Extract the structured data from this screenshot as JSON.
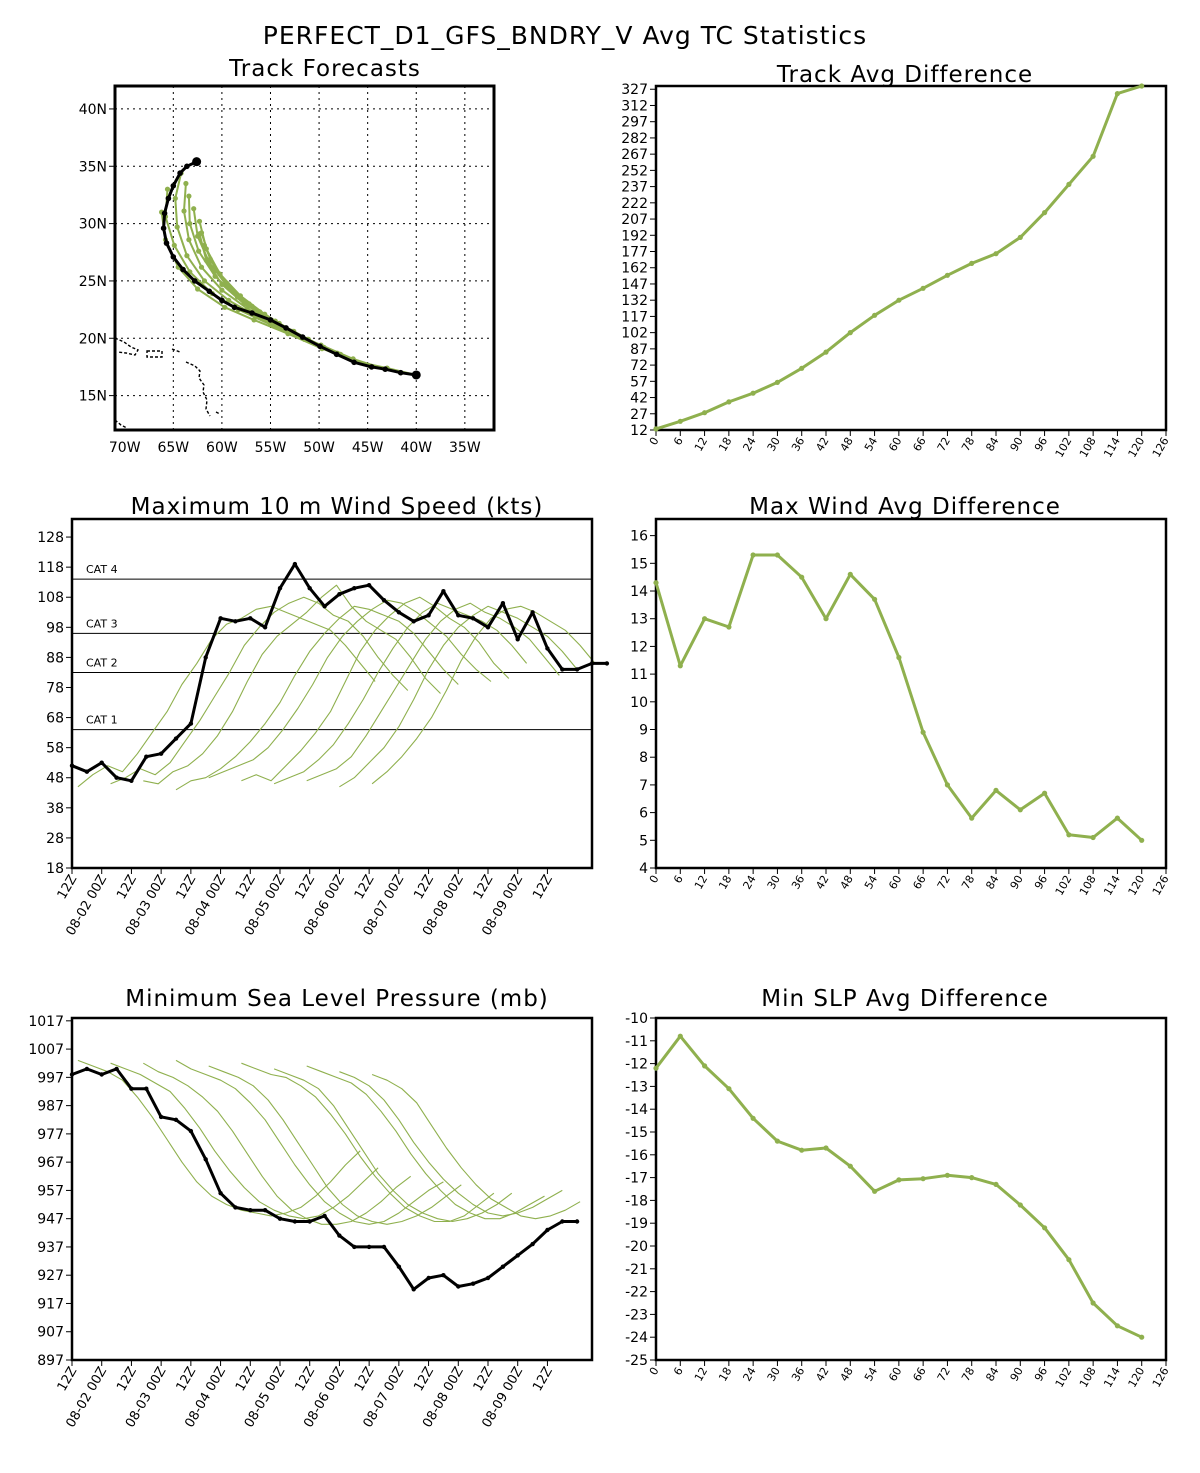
{
  "page": {
    "title": "PERFECT_D1_GFS_BNDRY_V Avg TC Statistics"
  },
  "colors": {
    "forecast": "#8fb04e",
    "observed": "#000000"
  },
  "chart_data": [
    {
      "type": "line",
      "title": "Track Forecasts",
      "xlabels": [
        "70W",
        "65W",
        "60W",
        "55W",
        "50W",
        "45W",
        "40W",
        "35W"
      ],
      "ylabels": [
        "15N",
        "20N",
        "25N",
        "30N",
        "35N",
        "40N"
      ],
      "xlim": [
        -71,
        -32
      ],
      "ylim": [
        12,
        42
      ],
      "grid": true,
      "observed": [
        [
          -40.0,
          16.8
        ],
        [
          -41.6,
          17.0
        ],
        [
          -43.2,
          17.3
        ],
        [
          -44.6,
          17.5
        ],
        [
          -46.4,
          17.9
        ],
        [
          -48.2,
          18.6
        ],
        [
          -49.9,
          19.3
        ],
        [
          -51.7,
          20.1
        ],
        [
          -53.4,
          20.9
        ],
        [
          -55.0,
          21.6
        ],
        [
          -56.9,
          22.2
        ],
        [
          -58.7,
          22.7
        ],
        [
          -60.0,
          23.3
        ],
        [
          -61.3,
          24.1
        ],
        [
          -62.8,
          25.0
        ],
        [
          -64.0,
          26.0
        ],
        [
          -65.0,
          27.1
        ],
        [
          -65.7,
          28.3
        ],
        [
          -66.0,
          29.6
        ],
        [
          -65.9,
          30.9
        ],
        [
          -65.5,
          32.2
        ],
        [
          -65.0,
          33.3
        ],
        [
          -64.3,
          34.4
        ],
        [
          -63.6,
          35.0
        ],
        [
          -62.6,
          35.4
        ]
      ],
      "forecasts": [
        [
          [
            -40.0,
            16.8
          ],
          [
            -43.0,
            17.4
          ],
          [
            -46.3,
            18.0
          ],
          [
            -49.7,
            19.1
          ],
          [
            -53.2,
            20.4
          ],
          [
            -56.7,
            21.6
          ],
          [
            -59.7,
            22.7
          ],
          [
            -62.5,
            24.3
          ],
          [
            -64.5,
            26.2
          ],
          [
            -65.8,
            28.6
          ],
          [
            -66.2,
            31.0
          ]
        ],
        [
          [
            -41.6,
            17.0
          ],
          [
            -44.8,
            17.6
          ],
          [
            -48.1,
            18.7
          ],
          [
            -51.5,
            19.9
          ],
          [
            -55.0,
            21.2
          ],
          [
            -58.3,
            22.5
          ],
          [
            -61.0,
            23.9
          ],
          [
            -63.3,
            25.8
          ],
          [
            -64.9,
            28.1
          ],
          [
            -65.8,
            30.6
          ],
          [
            -65.6,
            33.0
          ]
        ],
        [
          [
            -43.2,
            17.3
          ],
          [
            -46.5,
            18.2
          ],
          [
            -49.8,
            19.4
          ],
          [
            -53.1,
            20.6
          ],
          [
            -56.4,
            21.9
          ],
          [
            -59.3,
            23.3
          ],
          [
            -61.8,
            25.0
          ],
          [
            -63.6,
            27.2
          ],
          [
            -64.6,
            29.7
          ],
          [
            -64.8,
            32.2
          ],
          [
            -64.2,
            34.4
          ]
        ],
        [
          [
            -44.6,
            17.5
          ],
          [
            -47.8,
            18.6
          ],
          [
            -51.1,
            19.9
          ],
          [
            -54.3,
            21.2
          ],
          [
            -57.4,
            22.6
          ],
          [
            -60.0,
            24.2
          ],
          [
            -62.1,
            26.2
          ],
          [
            -63.4,
            28.6
          ],
          [
            -63.9,
            31.1
          ],
          [
            -63.7,
            33.5
          ]
        ],
        [
          [
            -46.4,
            17.9
          ],
          [
            -49.5,
            19.2
          ],
          [
            -52.6,
            20.6
          ],
          [
            -55.6,
            22.0
          ],
          [
            -58.4,
            23.6
          ],
          [
            -60.7,
            25.4
          ],
          [
            -62.4,
            27.6
          ],
          [
            -63.3,
            30.0
          ],
          [
            -63.4,
            32.4
          ]
        ],
        [
          [
            -48.2,
            18.6
          ],
          [
            -51.2,
            19.9
          ],
          [
            -54.1,
            21.3
          ],
          [
            -56.9,
            22.8
          ],
          [
            -59.4,
            24.5
          ],
          [
            -61.3,
            26.6
          ],
          [
            -62.5,
            28.9
          ],
          [
            -62.9,
            31.3
          ]
        ],
        [
          [
            -49.9,
            19.3
          ],
          [
            -52.8,
            20.6
          ],
          [
            -55.6,
            22.1
          ],
          [
            -58.1,
            23.7
          ],
          [
            -60.2,
            25.6
          ],
          [
            -61.6,
            27.8
          ],
          [
            -62.3,
            30.2
          ]
        ],
        [
          [
            -51.7,
            20.1
          ],
          [
            -54.5,
            21.5
          ],
          [
            -57.2,
            23.0
          ],
          [
            -59.5,
            24.8
          ],
          [
            -61.2,
            26.9
          ],
          [
            -62.1,
            29.2
          ]
        ],
        [
          [
            -53.4,
            20.9
          ],
          [
            -56.1,
            22.3
          ],
          [
            -58.6,
            23.9
          ],
          [
            -60.6,
            25.9
          ],
          [
            -61.8,
            28.1
          ]
        ],
        [
          [
            -55.0,
            21.6
          ],
          [
            -57.7,
            23.0
          ],
          [
            -60.0,
            24.7
          ],
          [
            -61.6,
            26.8
          ],
          [
            -62.3,
            29.1
          ]
        ]
      ]
    },
    {
      "type": "line",
      "title": "Track Avg Difference",
      "x": [
        0,
        6,
        12,
        18,
        24,
        30,
        36,
        42,
        48,
        54,
        60,
        66,
        72,
        78,
        84,
        90,
        96,
        102,
        108,
        114,
        120
      ],
      "values": [
        13,
        20,
        28,
        38,
        46,
        56,
        69,
        84,
        102,
        118,
        132,
        143,
        155,
        166,
        175,
        190,
        213,
        239,
        265,
        323,
        330
      ],
      "xticks": [
        "0",
        "6",
        "12",
        "18",
        "24",
        "30",
        "36",
        "42",
        "48",
        "54",
        "60",
        "66",
        "72",
        "78",
        "84",
        "90",
        "96",
        "102",
        "108",
        "114",
        "120",
        "126"
      ],
      "yticks": [
        "12",
        "27",
        "42",
        "57",
        "72",
        "87",
        "102",
        "117",
        "132",
        "147",
        "162",
        "177",
        "192",
        "207",
        "222",
        "237",
        "252",
        "267",
        "282",
        "297",
        "312",
        "327"
      ],
      "xlim": [
        0,
        126
      ],
      "ylim": [
        12,
        330
      ]
    },
    {
      "type": "line",
      "title": "Maximum 10 m Wind Speed (kts)",
      "xticks": [
        "12Z",
        "08-02 00Z",
        "12Z",
        "08-03 00Z",
        "12Z",
        "08-04 00Z",
        "12Z",
        "08-05 00Z",
        "12Z",
        "08-06 00Z",
        "12Z",
        "08-07 00Z",
        "12Z",
        "08-08 00Z",
        "12Z",
        "08-09 00Z",
        "12Z"
      ],
      "yticks": [
        "18",
        "28",
        "38",
        "48",
        "58",
        "68",
        "78",
        "88",
        "98",
        "108",
        "118",
        "128"
      ],
      "ylim": [
        18,
        134
      ],
      "xlim": [
        0,
        17.5
      ],
      "thresholds": [
        {
          "label": "CAT 1",
          "value": 64
        },
        {
          "label": "CAT 2",
          "value": 83
        },
        {
          "label": "CAT 3",
          "value": 96
        },
        {
          "label": "CAT 4",
          "value": 114
        }
      ],
      "observed": [
        52,
        50,
        53,
        48,
        47,
        55,
        56,
        61,
        66,
        88,
        101,
        100,
        101,
        98,
        111,
        119,
        111,
        105,
        109,
        111,
        112,
        107,
        103,
        100,
        102,
        110,
        102,
        101,
        98,
        106,
        94,
        103,
        91,
        84,
        84,
        86,
        86
      ],
      "forecasts": [
        [
          45,
          49,
          52,
          50,
          56,
          63,
          70,
          79,
          86,
          94,
          99,
          101,
          104,
          105,
          103,
          101,
          99,
          97,
          92,
          86,
          80
        ],
        [
          46,
          48,
          51,
          49,
          53,
          60,
          67,
          75,
          83,
          92,
          98,
          103,
          106,
          108,
          106,
          102,
          100,
          95,
          88,
          82,
          77
        ],
        [
          47,
          46,
          50,
          52,
          56,
          62,
          70,
          80,
          89,
          95,
          99,
          103,
          108,
          112,
          105,
          100,
          97,
          94,
          88,
          81,
          76
        ],
        [
          44,
          47,
          48,
          51,
          55,
          60,
          66,
          73,
          82,
          90,
          96,
          101,
          105,
          104,
          102,
          100,
          96,
          90,
          84,
          79
        ],
        [
          48,
          50,
          52,
          54,
          58,
          64,
          71,
          79,
          88,
          95,
          100,
          104,
          107,
          106,
          103,
          99,
          95,
          89,
          84,
          80
        ],
        [
          47,
          49,
          47,
          52,
          57,
          63,
          70,
          80,
          90,
          97,
          102,
          106,
          108,
          105,
          101,
          98,
          93,
          86,
          81
        ],
        [
          46,
          48,
          50,
          54,
          59,
          66,
          74,
          83,
          91,
          98,
          103,
          106,
          104,
          102,
          100,
          97,
          92,
          86
        ],
        [
          47,
          49,
          51,
          55,
          62,
          70,
          78,
          86,
          94,
          100,
          104,
          106,
          103,
          101,
          98,
          94,
          88,
          82
        ],
        [
          45,
          48,
          53,
          58,
          65,
          74,
          84,
          92,
          98,
          102,
          105,
          103,
          101,
          98,
          95,
          90,
          84
        ],
        [
          46,
          50,
          55,
          61,
          68,
          77,
          87,
          95,
          101,
          104,
          105,
          103,
          100,
          97,
          92,
          86
        ]
      ]
    },
    {
      "type": "line",
      "title": "Max Wind Avg Difference",
      "x": [
        0,
        6,
        12,
        18,
        24,
        30,
        36,
        42,
        48,
        54,
        60,
        66,
        72,
        78,
        84,
        90,
        96,
        102,
        108,
        114,
        120
      ],
      "values": [
        14.3,
        11.3,
        13.0,
        12.7,
        15.3,
        15.3,
        14.5,
        13.0,
        14.6,
        13.7,
        11.6,
        8.9,
        7.0,
        5.8,
        6.8,
        6.1,
        6.7,
        5.2,
        5.1,
        5.8,
        5.0
      ],
      "xticks": [
        "0",
        "6",
        "12",
        "18",
        "24",
        "30",
        "36",
        "42",
        "48",
        "54",
        "60",
        "66",
        "72",
        "78",
        "84",
        "90",
        "96",
        "102",
        "108",
        "114",
        "120",
        "126"
      ],
      "yticks": [
        "4",
        "5",
        "6",
        "7",
        "8",
        "9",
        "10",
        "11",
        "12",
        "13",
        "14",
        "15",
        "16"
      ],
      "xlim": [
        0,
        126
      ],
      "ylim": [
        4,
        16.6
      ]
    },
    {
      "type": "line",
      "title": "Minimum Sea Level Pressure (mb)",
      "xticks": [
        "12Z",
        "08-02 00Z",
        "12Z",
        "08-03 00Z",
        "12Z",
        "08-04 00Z",
        "12Z",
        "08-05 00Z",
        "12Z",
        "08-06 00Z",
        "12Z",
        "08-07 00Z",
        "12Z",
        "08-08 00Z",
        "12Z",
        "08-09 00Z",
        "12Z"
      ],
      "yticks": [
        "897",
        "907",
        "917",
        "927",
        "937",
        "947",
        "957",
        "967",
        "977",
        "987",
        "997",
        "1007",
        "1017"
      ],
      "ylim": [
        897,
        1018
      ],
      "xlim": [
        0,
        17.5
      ],
      "observed": [
        998,
        1000,
        998,
        1000,
        993,
        993,
        983,
        982,
        978,
        968,
        956,
        951,
        950,
        950,
        947,
        946,
        946,
        948,
        941,
        937,
        937,
        937,
        930,
        922,
        926,
        927,
        923,
        924,
        926,
        930,
        934,
        938,
        943,
        946,
        946
      ],
      "forecasts": [
        [
          1003,
          1001,
          999,
          996,
          990,
          983,
          975,
          967,
          960,
          955,
          952,
          950,
          949,
          948,
          949,
          951,
          955,
          960,
          966,
          971
        ],
        [
          1002,
          1000,
          998,
          995,
          992,
          986,
          979,
          971,
          964,
          958,
          953,
          950,
          948,
          947,
          948,
          951,
          955,
          960,
          965
        ],
        [
          1002,
          999,
          997,
          994,
          990,
          985,
          978,
          970,
          962,
          955,
          950,
          947,
          945,
          945,
          946,
          949,
          953,
          958,
          962
        ],
        [
          1003,
          1000,
          998,
          996,
          993,
          988,
          982,
          974,
          966,
          959,
          953,
          949,
          946,
          945,
          946,
          949,
          953,
          957,
          960
        ],
        [
          1001,
          999,
          997,
          994,
          989,
          982,
          974,
          966,
          958,
          952,
          948,
          946,
          945,
          946,
          948,
          951,
          955,
          959
        ],
        [
          1002,
          1000,
          998,
          997,
          994,
          990,
          984,
          977,
          969,
          962,
          956,
          951,
          948,
          946,
          946,
          948,
          952,
          956
        ],
        [
          1000,
          998,
          996,
          993,
          987,
          979,
          971,
          963,
          957,
          952,
          949,
          947,
          946,
          947,
          949,
          952,
          956
        ],
        [
          1001,
          999,
          997,
          995,
          991,
          985,
          978,
          970,
          963,
          957,
          952,
          949,
          947,
          947,
          949,
          952,
          955
        ],
        [
          999,
          997,
          994,
          989,
          982,
          974,
          967,
          961,
          956,
          952,
          949,
          948,
          949,
          951,
          954,
          957
        ],
        [
          998,
          996,
          993,
          988,
          980,
          972,
          965,
          959,
          954,
          951,
          948,
          947,
          948,
          950,
          953
        ]
      ]
    },
    {
      "type": "line",
      "title": "Min SLP Avg Difference",
      "x": [
        0,
        6,
        12,
        18,
        24,
        30,
        36,
        42,
        48,
        54,
        60,
        66,
        72,
        78,
        84,
        90,
        96,
        102,
        108,
        114,
        120
      ],
      "values": [
        -12.2,
        -10.8,
        -12.1,
        -13.1,
        -14.4,
        -15.4,
        -15.8,
        -15.7,
        -16.5,
        -17.6,
        -17.1,
        -17.05,
        -16.9,
        -17.0,
        -17.3,
        -18.2,
        -19.2,
        -20.6,
        -22.5,
        -23.5,
        -24.0
      ],
      "xticks": [
        "0",
        "6",
        "12",
        "18",
        "24",
        "30",
        "36",
        "42",
        "48",
        "54",
        "60",
        "66",
        "72",
        "78",
        "84",
        "90",
        "96",
        "102",
        "108",
        "114",
        "120",
        "126"
      ],
      "yticks": [
        "-25",
        "-24",
        "-23",
        "-22",
        "-21",
        "-20",
        "-19",
        "-18",
        "-17",
        "-16",
        "-15",
        "-14",
        "-13",
        "-12",
        "-11",
        "-10"
      ],
      "xlim": [
        0,
        126
      ],
      "ylim": [
        -25,
        -10
      ]
    }
  ]
}
